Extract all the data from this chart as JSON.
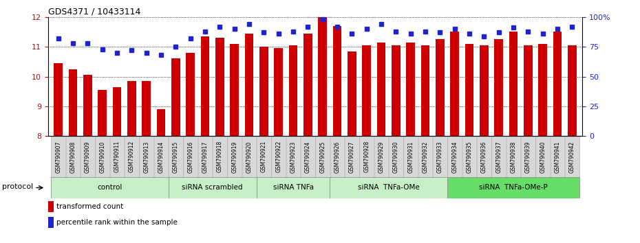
{
  "title": "GDS4371 / 10433114",
  "samples": [
    "GSM790907",
    "GSM790908",
    "GSM790909",
    "GSM790910",
    "GSM790911",
    "GSM790912",
    "GSM790913",
    "GSM790914",
    "GSM790915",
    "GSM790916",
    "GSM790917",
    "GSM790918",
    "GSM790919",
    "GSM790920",
    "GSM790921",
    "GSM790922",
    "GSM790923",
    "GSM790924",
    "GSM790925",
    "GSM790926",
    "GSM790927",
    "GSM790928",
    "GSM790929",
    "GSM790930",
    "GSM790931",
    "GSM790932",
    "GSM790933",
    "GSM790934",
    "GSM790935",
    "GSM790936",
    "GSM790937",
    "GSM790938",
    "GSM790939",
    "GSM790940",
    "GSM790941",
    "GSM790942"
  ],
  "bar_values": [
    10.45,
    10.25,
    10.05,
    9.55,
    9.65,
    9.85,
    9.85,
    8.9,
    10.6,
    10.8,
    11.35,
    11.3,
    11.1,
    11.45,
    11.0,
    10.95,
    11.05,
    11.45,
    12.0,
    11.7,
    10.85,
    11.05,
    11.15,
    11.05,
    11.15,
    11.05,
    11.25,
    11.5,
    11.1,
    11.05,
    11.25,
    11.5,
    11.05,
    11.1,
    11.5,
    11.05
  ],
  "dot_values": [
    82,
    78,
    78,
    73,
    70,
    72,
    70,
    68,
    75,
    82,
    88,
    92,
    90,
    94,
    87,
    86,
    88,
    92,
    98,
    92,
    86,
    90,
    94,
    88,
    86,
    88,
    87,
    90,
    86,
    84,
    87,
    91,
    88,
    86,
    90,
    92
  ],
  "group_data": [
    {
      "label": "control",
      "start": 0,
      "end": 8,
      "color": "#c8f0c8"
    },
    {
      "label": "siRNA scrambled",
      "start": 8,
      "end": 14,
      "color": "#c8f0c8"
    },
    {
      "label": "siRNA TNFa",
      "start": 14,
      "end": 19,
      "color": "#c8f0c8"
    },
    {
      "label": "siRNA  TNFa-OMe",
      "start": 19,
      "end": 27,
      "color": "#c8f0c8"
    },
    {
      "label": "siRNA  TNFa-OMe-P",
      "start": 27,
      "end": 36,
      "color": "#66dd66"
    }
  ],
  "bar_color": "#cc0000",
  "dot_color": "#2222cc",
  "ylim_left": [
    8,
    12
  ],
  "ylim_right": [
    0,
    100
  ],
  "yticks_left": [
    8,
    9,
    10,
    11,
    12
  ],
  "yticks_right": [
    0,
    25,
    50,
    75,
    100
  ],
  "ytick_labels_right": [
    "0",
    "25",
    "50",
    "75",
    "100%"
  ],
  "legend_bar_label": "transformed count",
  "legend_dot_label": "percentile rank within the sample",
  "protocol_label": "protocol",
  "tick_label_color_left": "#cc0000",
  "tick_label_color_right": "#2222cc"
}
